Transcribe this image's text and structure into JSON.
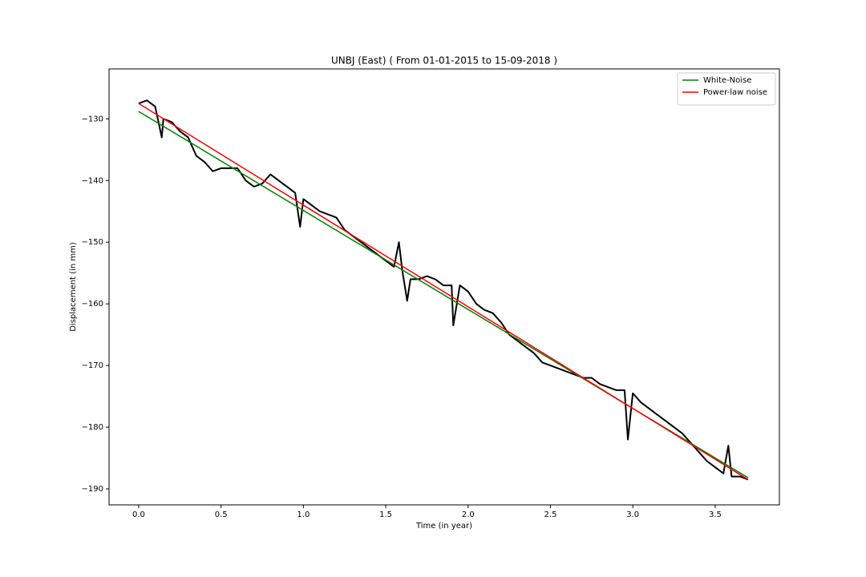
{
  "chart_data": {
    "type": "line",
    "title": "UNBJ (East) ( From 01-01-2015 to 15-09-2018 )",
    "x_label": "Time (in year)",
    "y_label": "Displacement (in mm)",
    "xlim": [
      -0.18,
      3.89
    ],
    "ylim": [
      -192.6,
      -121.9
    ],
    "xticks": [
      {
        "value": 0,
        "label": "0.0"
      },
      {
        "value": 0.5,
        "label": "0.5"
      },
      {
        "value": 1,
        "label": "1.0"
      },
      {
        "value": 1.5,
        "label": "1.5"
      },
      {
        "value": 2,
        "label": "2.0"
      },
      {
        "value": 2.5,
        "label": "2.5"
      },
      {
        "value": 3,
        "label": "3.0"
      },
      {
        "value": 3.5,
        "label": "3.5"
      }
    ],
    "yticks": [
      {
        "value": -190,
        "label": "−190"
      },
      {
        "value": -180,
        "label": "−180"
      },
      {
        "value": -170,
        "label": "−170"
      },
      {
        "value": -160,
        "label": "−160"
      },
      {
        "value": -150,
        "label": "−150"
      },
      {
        "value": -140,
        "label": "−140"
      },
      {
        "value": -130,
        "label": "−130"
      }
    ],
    "legend": "upper right",
    "series": [
      {
        "color": "#000000",
        "x": [
          0,
          0.05,
          0.1,
          0.14,
          0.15,
          0.2,
          0.25,
          0.3,
          0.35,
          0.4,
          0.45,
          0.5,
          0.55,
          0.6,
          0.65,
          0.7,
          0.75,
          0.8,
          0.85,
          0.9,
          0.95,
          0.98,
          1.0,
          1.05,
          1.1,
          1.15,
          1.2,
          1.25,
          1.3,
          1.35,
          1.4,
          1.45,
          1.5,
          1.55,
          1.58,
          1.6,
          1.63,
          1.65,
          1.7,
          1.75,
          1.8,
          1.85,
          1.9,
          1.91,
          1.95,
          2.0,
          2.05,
          2.1,
          2.15,
          2.2,
          2.25,
          2.3,
          2.35,
          2.4,
          2.45,
          2.5,
          2.55,
          2.6,
          2.65,
          2.7,
          2.75,
          2.8,
          2.85,
          2.9,
          2.95,
          2.97,
          3.0,
          3.05,
          3.1,
          3.15,
          3.2,
          3.25,
          3.3,
          3.35,
          3.4,
          3.45,
          3.5,
          3.55,
          3.58,
          3.6,
          3.65,
          3.7
        ],
        "values": [
          -127.5,
          -127,
          -128,
          -133,
          -130,
          -130.5,
          -132,
          -133,
          -136,
          -137,
          -138.5,
          -138,
          -138,
          -138,
          -140,
          -141,
          -140.5,
          -139,
          -140,
          -141,
          -142,
          -147.5,
          -143,
          -144,
          -145,
          -145.5,
          -146,
          -148,
          -149,
          -150,
          -151,
          -152,
          -153,
          -154,
          -150,
          -154.5,
          -159.5,
          -156,
          -156,
          -155.5,
          -156,
          -157,
          -157,
          -163.5,
          -157,
          -158,
          -160,
          -161,
          -161.5,
          -163,
          -165,
          -166,
          -167,
          -168,
          -169.5,
          -170,
          -170.5,
          -171,
          -171.5,
          -172,
          -172,
          -173,
          -173.5,
          -174,
          -174,
          -182,
          -174.5,
          -176,
          -177,
          -178,
          -179,
          -180,
          -181,
          -182.5,
          -184,
          -185.5,
          -186.5,
          -187.5,
          -183,
          -188,
          -188,
          -188.5
        ]
      },
      {
        "name": "White-Noise",
        "color": "#008000",
        "x": [
          0,
          3.7
        ],
        "values": [
          -128.8,
          -188.2
        ]
      },
      {
        "name": "Power-law noise",
        "color": "#ff0000",
        "x": [
          0,
          3.7
        ],
        "values": [
          -127.5,
          -188.5
        ]
      }
    ]
  }
}
